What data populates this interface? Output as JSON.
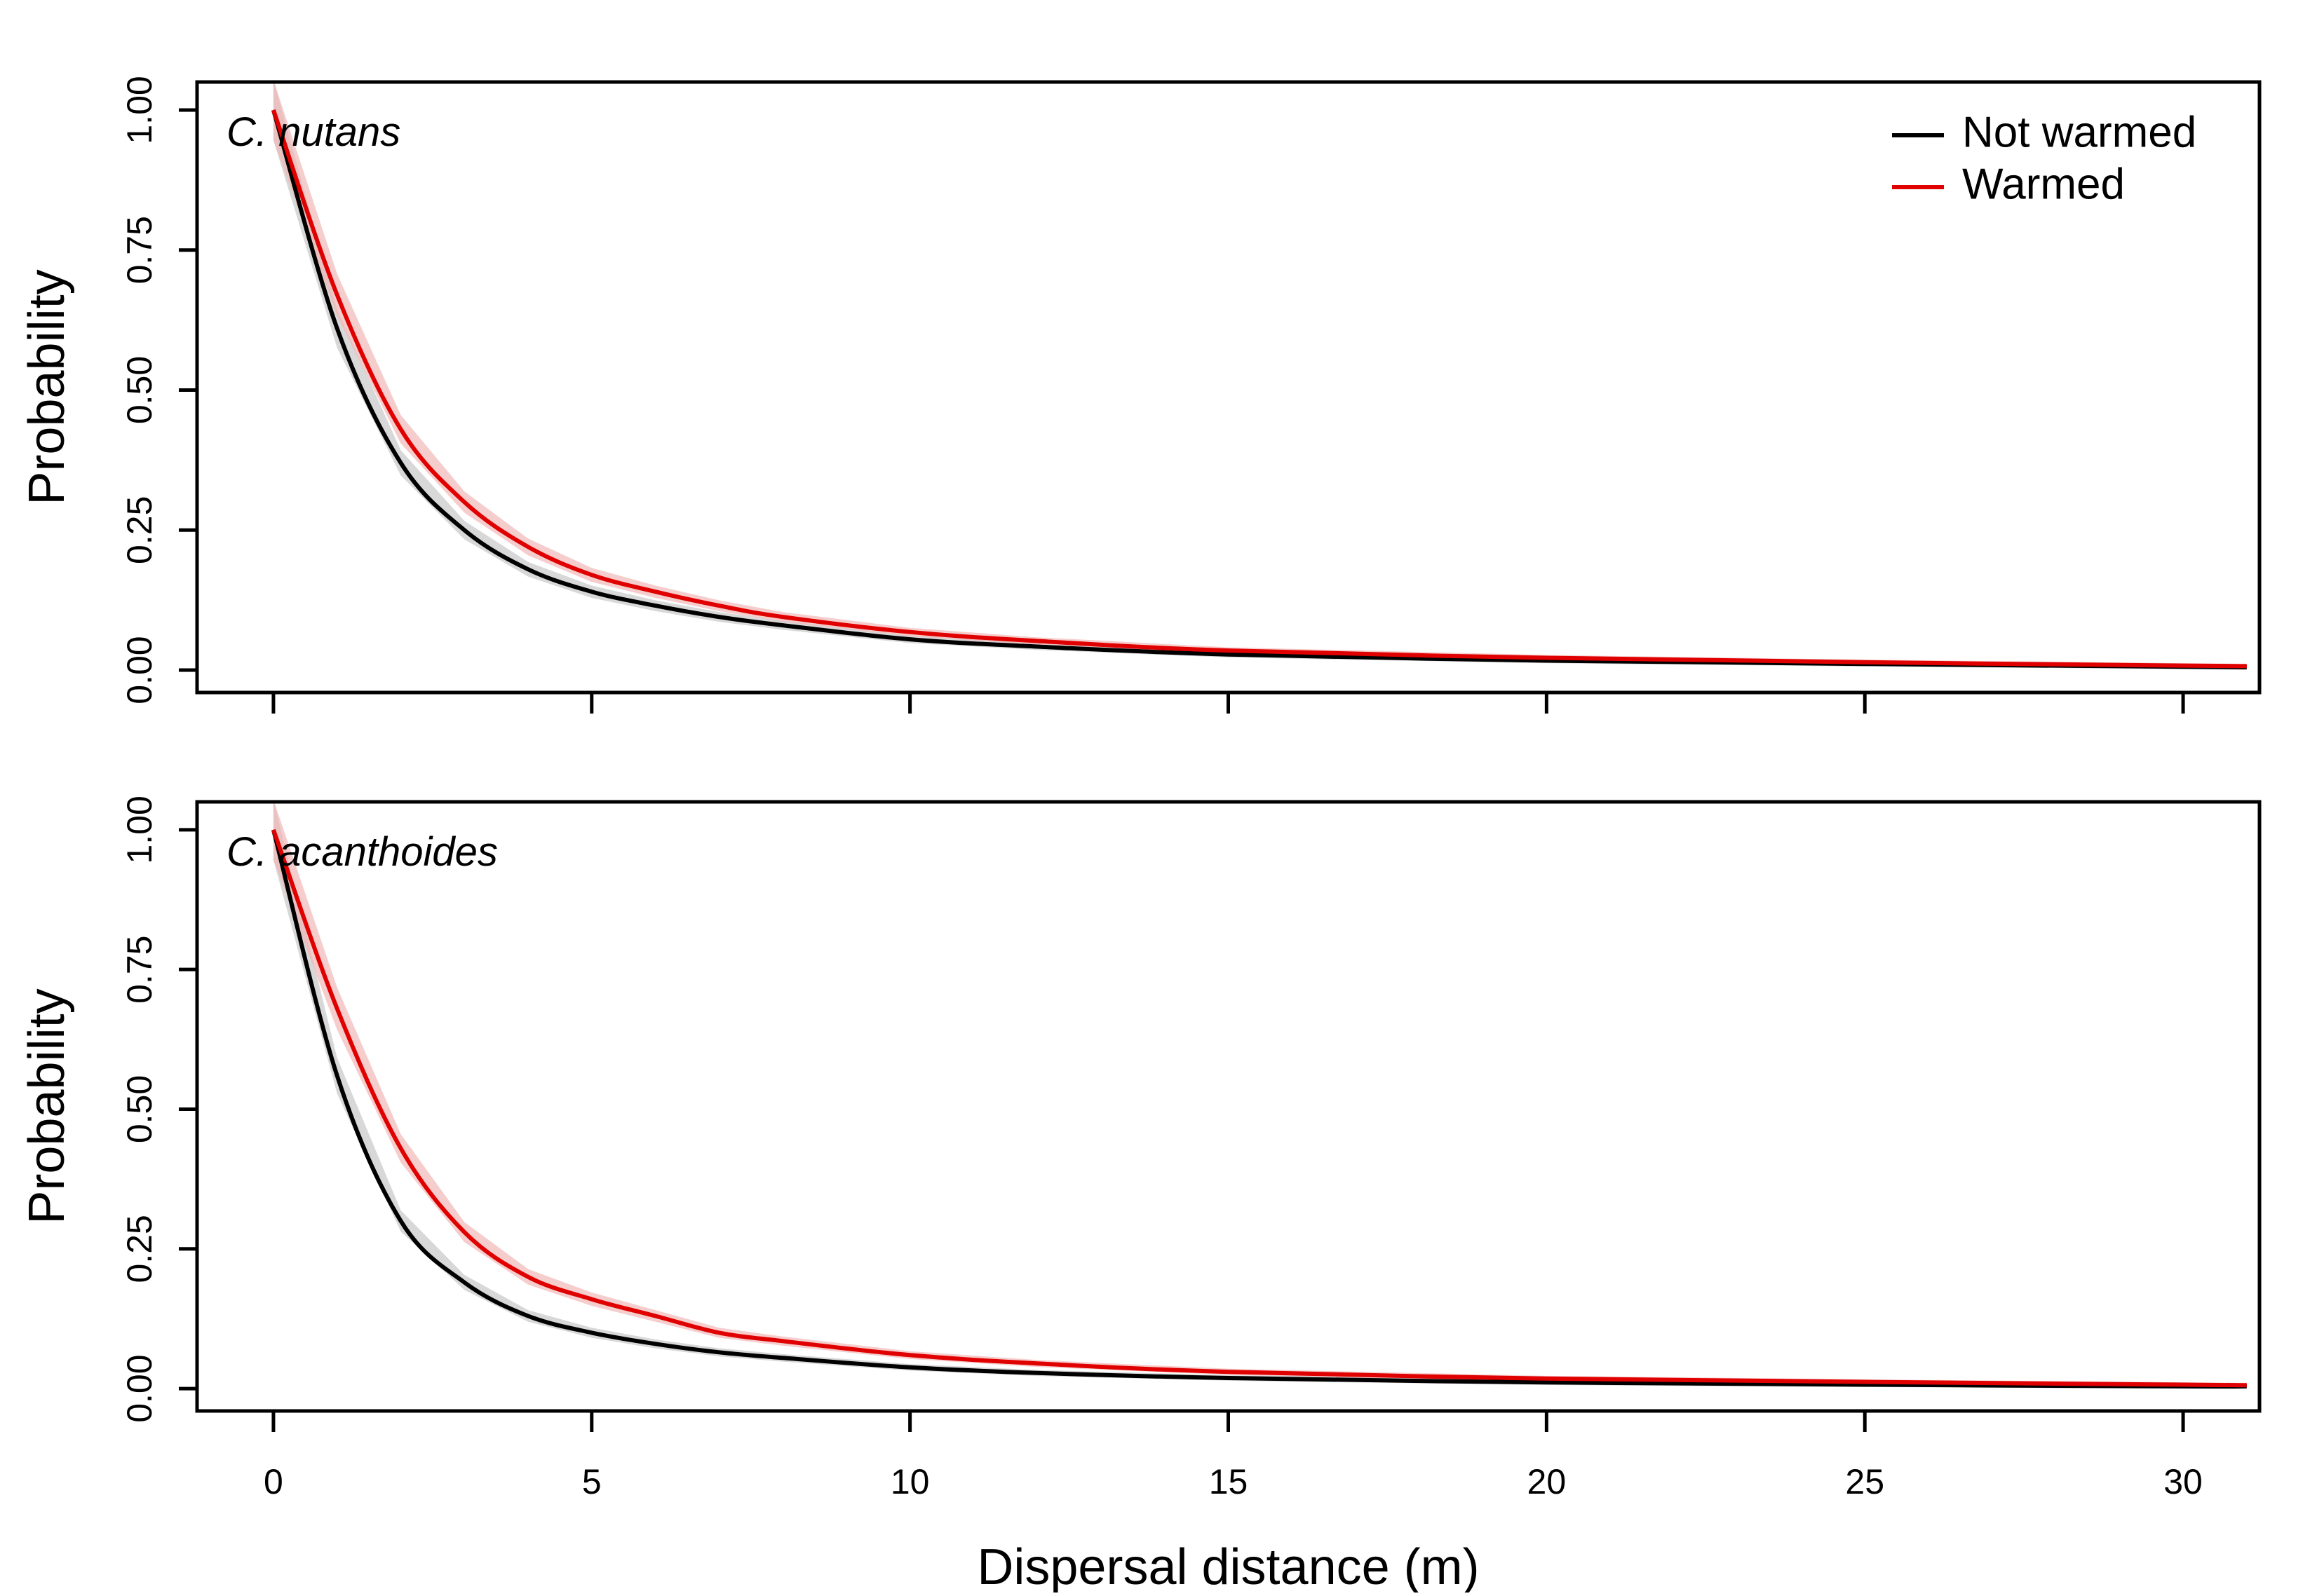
{
  "chart_data": [
    {
      "type": "line",
      "panel_label": "C. nutans",
      "xlabel": "",
      "ylabel": "Probability",
      "xlim": [
        -1.2,
        31.2
      ],
      "ylim": [
        -0.04,
        1.05
      ],
      "x_ticks": [
        "0",
        "5",
        "10",
        "15",
        "20",
        "25",
        "30"
      ],
      "x_tick_labels_shown": false,
      "y_ticks": [
        "0.00",
        "0.25",
        "0.50",
        "0.75",
        "1.00"
      ],
      "x": [
        0,
        1,
        2,
        3,
        4,
        5,
        6,
        7,
        8,
        10,
        12,
        15,
        20,
        25,
        30,
        31
      ],
      "series": [
        {
          "name": "Not warmed",
          "color": "#000000",
          "band_color": "#c8c8c8",
          "values": [
            1.0,
            0.61,
            0.37,
            0.25,
            0.18,
            0.14,
            0.115,
            0.095,
            0.08,
            0.055,
            0.042,
            0.028,
            0.017,
            0.011,
            0.006,
            0.005
          ]
        },
        {
          "name": "Warmed",
          "color": "#e00000",
          "band_color": "#f2b8b8",
          "values": [
            1.0,
            0.67,
            0.43,
            0.3,
            0.22,
            0.17,
            0.14,
            0.115,
            0.095,
            0.068,
            0.052,
            0.035,
            0.022,
            0.014,
            0.008,
            0.007
          ]
        }
      ],
      "legend": {
        "position": "top-right",
        "entries": [
          "Not warmed",
          "Warmed"
        ]
      }
    },
    {
      "type": "line",
      "panel_label": "C. acanthoides",
      "xlabel": "Dispersal distance (m)",
      "ylabel": "Probability",
      "xlim": [
        -1.2,
        31.2
      ],
      "ylim": [
        -0.04,
        1.05
      ],
      "x_ticks": [
        "0",
        "5",
        "10",
        "15",
        "20",
        "25",
        "30"
      ],
      "x_tick_labels_shown": true,
      "y_ticks": [
        "0.00",
        "0.25",
        "0.50",
        "0.75",
        "1.00"
      ],
      "x": [
        0,
        1,
        2,
        3,
        4,
        5,
        6,
        7,
        8,
        10,
        12,
        15,
        20,
        25,
        30,
        31
      ],
      "series": [
        {
          "name": "Not warmed",
          "color": "#000000",
          "band_color": "#c8c8c8",
          "values": [
            1.0,
            0.56,
            0.3,
            0.19,
            0.13,
            0.1,
            0.08,
            0.065,
            0.055,
            0.038,
            0.028,
            0.019,
            0.011,
            0.007,
            0.004,
            0.004
          ]
        },
        {
          "name": "Warmed",
          "color": "#e00000",
          "band_color": "#f2b8b8",
          "values": [
            1.0,
            0.68,
            0.43,
            0.28,
            0.2,
            0.16,
            0.13,
            0.1,
            0.085,
            0.06,
            0.045,
            0.03,
            0.018,
            0.012,
            0.007,
            0.006
          ]
        }
      ],
      "legend": null
    }
  ]
}
